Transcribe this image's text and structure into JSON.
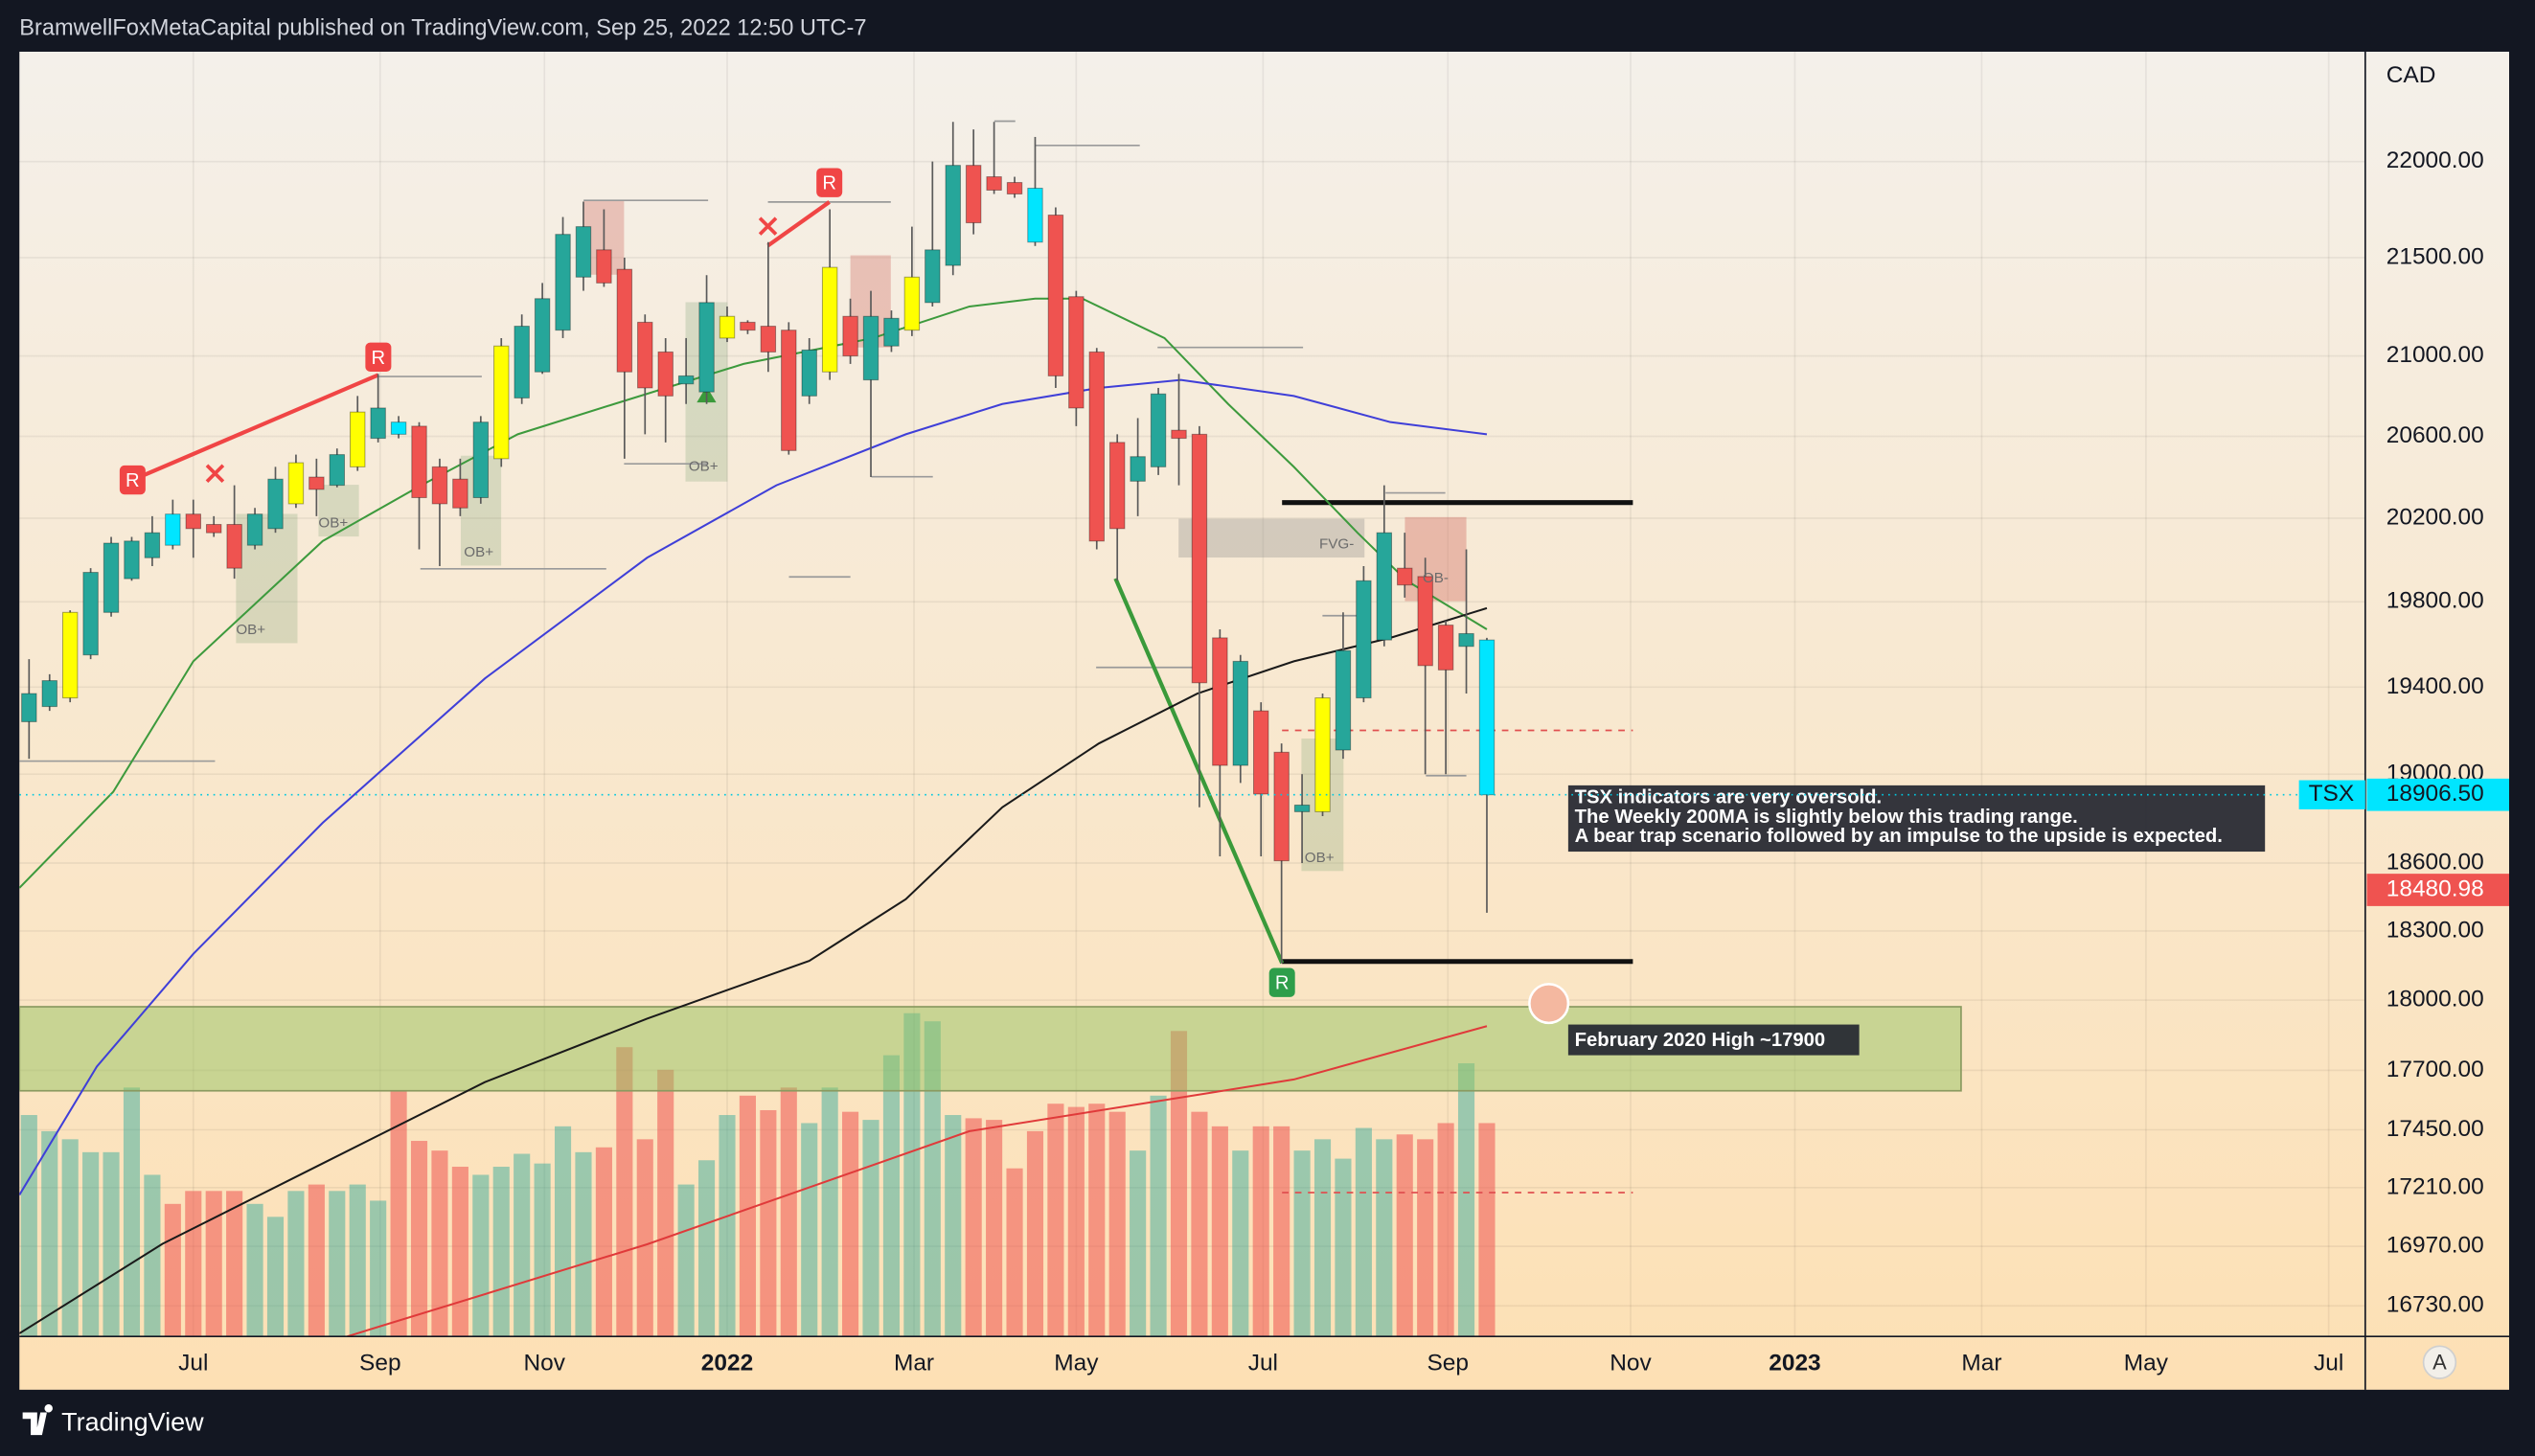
{
  "header": "BramwellFoxMetaCapital published on TradingView.com, Sep 25, 2022 12:50 UTC-7",
  "footer": "TradingView",
  "chart_data": {
    "type": "candlestick",
    "symbol": "TSX",
    "currency": "CAD",
    "log_scale": true,
    "grid": true,
    "palette": {
      "teal": "#26a69a",
      "red": "#ef5350",
      "yellow": "#ffff00",
      "cyan": "#00e5ff"
    },
    "volume_colors": {
      "up": "rgba(38,166,154,0.45)",
      "down": "rgba(239,83,80,0.55)"
    },
    "xlim": [
      -0.47,
      113.78
    ],
    "xticks": [
      {
        "value": 8,
        "label": "Jul"
      },
      {
        "value": 17.1,
        "label": "Sep"
      },
      {
        "value": 25.1,
        "label": "Nov"
      },
      {
        "value": 34,
        "label": "2022"
      },
      {
        "value": 43.1,
        "label": "Mar"
      },
      {
        "value": 51,
        "label": "May"
      },
      {
        "value": 60.1,
        "label": "Jul"
      },
      {
        "value": 69.1,
        "label": "Sep"
      },
      {
        "value": 78,
        "label": "Nov"
      },
      {
        "value": 86,
        "label": "2023"
      },
      {
        "value": 95.1,
        "label": "Mar"
      },
      {
        "value": 103.1,
        "label": "May"
      },
      {
        "value": 112,
        "label": "Jul"
      }
    ],
    "ylim": [
      16608,
      22586
    ],
    "yticks": [
      {
        "value": 22000,
        "label": "22000.00"
      },
      {
        "value": 21500,
        "label": "21500.00"
      },
      {
        "value": 21000,
        "label": "21000.00"
      },
      {
        "value": 20600,
        "label": "20600.00"
      },
      {
        "value": 20200,
        "label": "20200.00"
      },
      {
        "value": 19800,
        "label": "19800.00"
      },
      {
        "value": 19400,
        "label": "19400.00"
      },
      {
        "value": 19000,
        "label": "19000.00"
      },
      {
        "value": 18600,
        "label": "18600.00"
      },
      {
        "value": 18300,
        "label": "18300.00"
      },
      {
        "value": 18000,
        "label": "18000.00"
      },
      {
        "value": 17700,
        "label": "17700.00"
      },
      {
        "value": 17450,
        "label": "17450.00"
      },
      {
        "value": 17210,
        "label": "17210.00"
      },
      {
        "value": 16970,
        "label": "16970.00"
      },
      {
        "value": 16730,
        "label": "16730.00"
      }
    ],
    "x": [
      0,
      1,
      2,
      3,
      4,
      5,
      6,
      7,
      8,
      9,
      10,
      11,
      12,
      13,
      14,
      15,
      16,
      17,
      18,
      19,
      20,
      21,
      22,
      23,
      24,
      25,
      26,
      27,
      28,
      29,
      30,
      31,
      32,
      33,
      34,
      35,
      36,
      37,
      38,
      39,
      40,
      41,
      42,
      43,
      44,
      45,
      46,
      47,
      48,
      49,
      50,
      51,
      52,
      53,
      54,
      55,
      56,
      57,
      58,
      59,
      60,
      61,
      62,
      63,
      64,
      65,
      66,
      67,
      68,
      69,
      70,
      71
    ],
    "open": [
      19240,
      19310,
      19350,
      19550,
      19750,
      19910,
      20010,
      20220,
      20220,
      20170,
      20170,
      20070,
      20150,
      20270,
      20400,
      20360,
      20450,
      20590,
      20670,
      20650,
      20450,
      20390,
      20300,
      20490,
      20790,
      20920,
      21130,
      21400,
      21540,
      21440,
      21170,
      21020,
      20860,
      20820,
      21090,
      21170,
      21150,
      21130,
      20800,
      20920,
      21200,
      20880,
      21050,
      21130,
      21270,
      21460,
      21980,
      21920,
      21890,
      21860,
      21720,
      21300,
      21020,
      20570,
      20380,
      20450,
      20630,
      20610,
      19630,
      19040,
      19290,
      19100,
      18830,
      18830,
      19110,
      19350,
      19620,
      19960,
      19920,
      19690,
      19590,
      19620
    ],
    "high": [
      19530,
      19460,
      19760,
      19960,
      20110,
      20110,
      20210,
      20290,
      20290,
      20210,
      20360,
      20250,
      20450,
      20510,
      20490,
      20540,
      20800,
      20910,
      20700,
      20670,
      20490,
      20490,
      20700,
      21090,
      21210,
      21370,
      21710,
      21790,
      21750,
      21500,
      21210,
      21090,
      21090,
      21410,
      21250,
      21180,
      21580,
      21170,
      21090,
      21750,
      21290,
      21330,
      21230,
      21660,
      22000,
      22210,
      22170,
      22210,
      21920,
      22130,
      21760,
      21330,
      21040,
      20610,
      20690,
      20840,
      20910,
      20650,
      19670,
      19550,
      19330,
      19140,
      19000,
      19370,
      19750,
      19970,
      20360,
      20130,
      20010,
      19710,
      20050,
      19630
    ],
    "low": [
      19070,
      19290,
      19330,
      19530,
      19730,
      19900,
      19970,
      20050,
      20010,
      20110,
      19910,
      20050,
      20130,
      20250,
      20210,
      20350,
      20430,
      20570,
      20590,
      20050,
      19970,
      20210,
      20270,
      20450,
      20760,
      20910,
      21090,
      21330,
      21350,
      20490,
      20610,
      20570,
      20760,
      20760,
      21070,
      21110,
      20920,
      20510,
      20760,
      20880,
      20960,
      20400,
      21020,
      21100,
      21250,
      21410,
      21620,
      21830,
      21810,
      21560,
      20840,
      20650,
      20050,
      19900,
      20210,
      20410,
      20360,
      18850,
      18630,
      18960,
      18630,
      18160,
      18600,
      18810,
      19070,
      19330,
      19590,
      19820,
      19000,
      19000,
      19370,
      18380
    ],
    "close": [
      19370,
      19430,
      19750,
      19940,
      20080,
      20090,
      20130,
      20070,
      20150,
      20130,
      19960,
      20220,
      20390,
      20470,
      20340,
      20510,
      20720,
      20740,
      20610,
      20300,
      20270,
      20250,
      20670,
      21050,
      21150,
      21290,
      21620,
      21660,
      21370,
      20920,
      20840,
      20800,
      20900,
      21270,
      21200,
      21130,
      21020,
      20530,
      21030,
      21450,
      21000,
      21200,
      21190,
      21400,
      21540,
      21980,
      21680,
      21850,
      21830,
      21580,
      20900,
      20740,
      20090,
      20150,
      20500,
      20810,
      20590,
      19420,
      19040,
      19520,
      18910,
      18610,
      18860,
      19350,
      19570,
      19900,
      20130,
      19880,
      19500,
      19480,
      19650,
      18906.5
    ],
    "candle_colors": [
      "teal",
      "teal",
      "yellow",
      "teal",
      "teal",
      "teal",
      "teal",
      "cyan",
      "red",
      "red",
      "red",
      "teal",
      "teal",
      "yellow",
      "red",
      "teal",
      "yellow",
      "teal",
      "cyan",
      "red",
      "red",
      "red",
      "teal",
      "yellow",
      "teal",
      "teal",
      "teal",
      "teal",
      "red",
      "red",
      "red",
      "red",
      "teal",
      "teal",
      "yellow",
      "red",
      "red",
      "red",
      "teal",
      "yellow",
      "red",
      "teal",
      "teal",
      "yellow",
      "teal",
      "teal",
      "red",
      "red",
      "red",
      "cyan",
      "red",
      "red",
      "red",
      "red",
      "teal",
      "teal",
      "red",
      "red",
      "red",
      "teal",
      "red",
      "red",
      "teal",
      "yellow",
      "teal",
      "teal",
      "teal",
      "red",
      "red",
      "red",
      "teal",
      "cyan"
    ],
    "volume_ylim": [
      0,
      795
    ],
    "volume": [
      137,
      127,
      122,
      114,
      114,
      154,
      100,
      82,
      90,
      90,
      90,
      82,
      74,
      90,
      94,
      90,
      94,
      84,
      152,
      121,
      115,
      105,
      100,
      105,
      113,
      107,
      130,
      114,
      117,
      179,
      122,
      165,
      94,
      109,
      137,
      149,
      140,
      154,
      132,
      154,
      139,
      134,
      174,
      200,
      195,
      137,
      135,
      134,
      104,
      127,
      144,
      142,
      144,
      139,
      115,
      149,
      189,
      139,
      130,
      115,
      130,
      130,
      115,
      122,
      110,
      129,
      122,
      125,
      122,
      132,
      169,
      132
    ],
    "lines": [
      {
        "color": "#3d9a3d",
        "x": [
          -0.47,
          4.1,
          8,
          14.3,
          19.1,
          23.8,
          28.5,
          34.8,
          41.1,
          45.8,
          49,
          51.3,
          55.3,
          58.4,
          61.6,
          64.7,
          67.1,
          71
        ],
        "values": [
          18490,
          18920,
          19520,
          20090,
          20360,
          20610,
          20760,
          20960,
          21090,
          21250,
          21290,
          21290,
          21090,
          20760,
          20450,
          20130,
          19900,
          19670
        ]
      },
      {
        "color": "#3f3fd8",
        "x": [
          -0.47,
          3.3,
          8,
          14.3,
          22.2,
          30.1,
          36.4,
          42.7,
          47.4,
          52.1,
          56.1,
          61.6,
          66.3,
          71
        ],
        "values": [
          17180,
          17716,
          18200,
          18780,
          19440,
          20010,
          20360,
          20610,
          20760,
          20840,
          20880,
          20800,
          20670,
          20610
        ]
      },
      {
        "color": "#1a1a1a",
        "x": [
          -0.47,
          6.5,
          14.3,
          22.2,
          30.1,
          38,
          42.7,
          47.4,
          52.1,
          56.9,
          61.6,
          66.3,
          71
        ],
        "values": [
          16620,
          16980,
          17310,
          17650,
          17920,
          18170,
          18440,
          18850,
          19140,
          19370,
          19520,
          19630,
          19770
        ]
      }
    ],
    "volume_ma": {
      "color": "#e03a3a",
      "x": [
        15.5,
        30.1,
        45.8,
        61.6,
        71
      ],
      "values": [
        0,
        57,
        127,
        159,
        192
      ]
    },
    "last_price": {
      "value": 18906.5,
      "label": "18906.50"
    },
    "alert_price": 18480.98,
    "annotations": [
      "TSX indicators are very oversold.",
      "The Weekly 200MA is slightly below this trading range.",
      "A bear trap scenario followed by an impulse to the upside is expected."
    ],
    "zone_label": "February 2020 High ~17900",
    "labels": [
      "OB+",
      "OB+",
      "OB+",
      "OB+",
      "OB+",
      "FVG-",
      "OB-"
    ],
    "signals": [
      "R",
      "R",
      "R",
      "R"
    ],
    "scale_button": "A"
  }
}
